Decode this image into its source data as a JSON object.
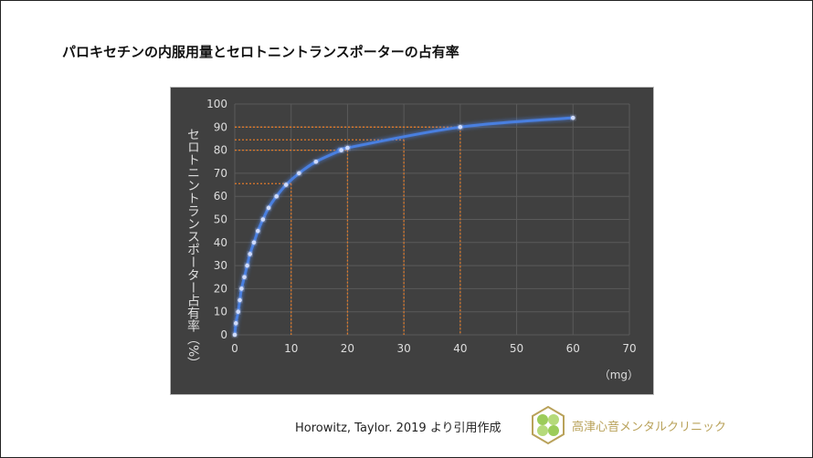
{
  "title": "パロキセチンの内服用量とセロトニントランスポーターの占有率",
  "citation": "Horowitz, Taylor. 2019 より引用作成",
  "clinic_name": "高津心音メンタルクリニック",
  "logo_icon": "clover-hexagon-logo",
  "colors": {
    "background": "#404040",
    "line": "#4a7fe0",
    "reference": "#e07a2a",
    "grid": "#5a5a5a",
    "logo": "#b9a25a"
  },
  "chart_data": {
    "type": "line",
    "title": "",
    "xlabel": "（mg）",
    "ylabel": "セロトニントランスポーター占有率（%）",
    "xlim": [
      0,
      70
    ],
    "ylim": [
      0,
      100
    ],
    "grid": true,
    "x_ticks": [
      "0",
      "10",
      "20",
      "30",
      "40",
      "50",
      "60",
      "70"
    ],
    "y_ticks": [
      "0",
      "10",
      "20",
      "30",
      "40",
      "50",
      "60",
      "70",
      "80",
      "90",
      "100"
    ],
    "series": [
      {
        "x": [
          0,
          0.2,
          0.6,
          0.9,
          1.2,
          1.7,
          2.2,
          2.7,
          3.4,
          4.1,
          5,
          6,
          7.4,
          9.1,
          11.4,
          14.4,
          18.9,
          20,
          40,
          60
        ],
        "y": [
          0,
          5,
          10,
          15,
          20,
          25,
          30,
          35,
          40,
          45,
          50,
          55,
          60,
          65,
          70,
          75,
          80,
          81,
          90,
          94
        ]
      }
    ],
    "reference_lines": [
      {
        "x": 10,
        "y": 65.5
      },
      {
        "x": 20,
        "y": 80
      },
      {
        "x": 30,
        "y": 84.5
      },
      {
        "x": 40,
        "y": 90
      }
    ]
  }
}
